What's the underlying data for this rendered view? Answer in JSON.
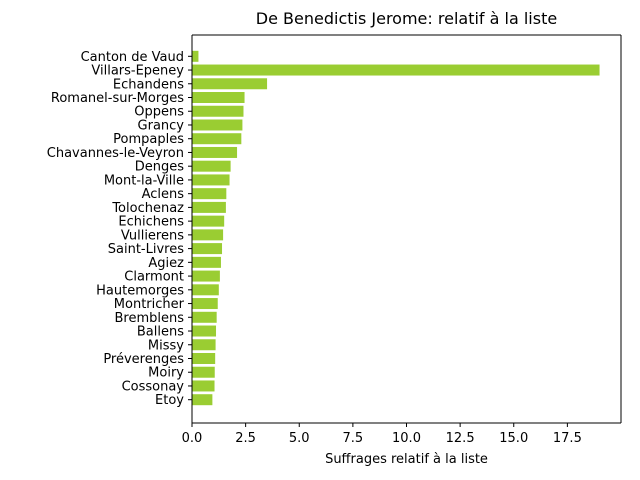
{
  "chart_data": {
    "type": "bar",
    "orientation": "horizontal",
    "title": "De Benedictis Jerome: relatif à la liste",
    "xlabel": "Suffrages relatif à la liste",
    "ylabel": "",
    "xlim": [
      0,
      20.0
    ],
    "xticks": [
      0.0,
      2.5,
      5.0,
      7.5,
      10.0,
      12.5,
      15.0,
      17.5
    ],
    "xtick_labels": [
      "0.0",
      "2.5",
      "5.0",
      "7.5",
      "10.0",
      "12.5",
      "15.0",
      "17.5"
    ],
    "grid": false,
    "legend": "none",
    "bar_color": "#9acd32",
    "categories": [
      "Canton de Vaud",
      "Villars-Epeney",
      "Echandens",
      "Romanel-sur-Morges",
      "Oppens",
      "Grancy",
      "Pompaples",
      "Chavannes-le-Veyron",
      "Denges",
      "Mont-la-Ville",
      "Aclens",
      "Tolochenaz",
      "Echichens",
      "Vullierens",
      "Saint-Livres",
      "Agiez",
      "Clarmont",
      "Hautemorges",
      "Montricher",
      "Bremblens",
      "Ballens",
      "Missy",
      "Préverenges",
      "Moiry",
      "Cossonay",
      "Etoy"
    ],
    "values": [
      0.3,
      19.0,
      3.5,
      2.45,
      2.4,
      2.35,
      2.3,
      2.1,
      1.8,
      1.75,
      1.6,
      1.58,
      1.5,
      1.45,
      1.4,
      1.35,
      1.3,
      1.25,
      1.2,
      1.15,
      1.12,
      1.1,
      1.08,
      1.06,
      1.05,
      0.95
    ]
  }
}
